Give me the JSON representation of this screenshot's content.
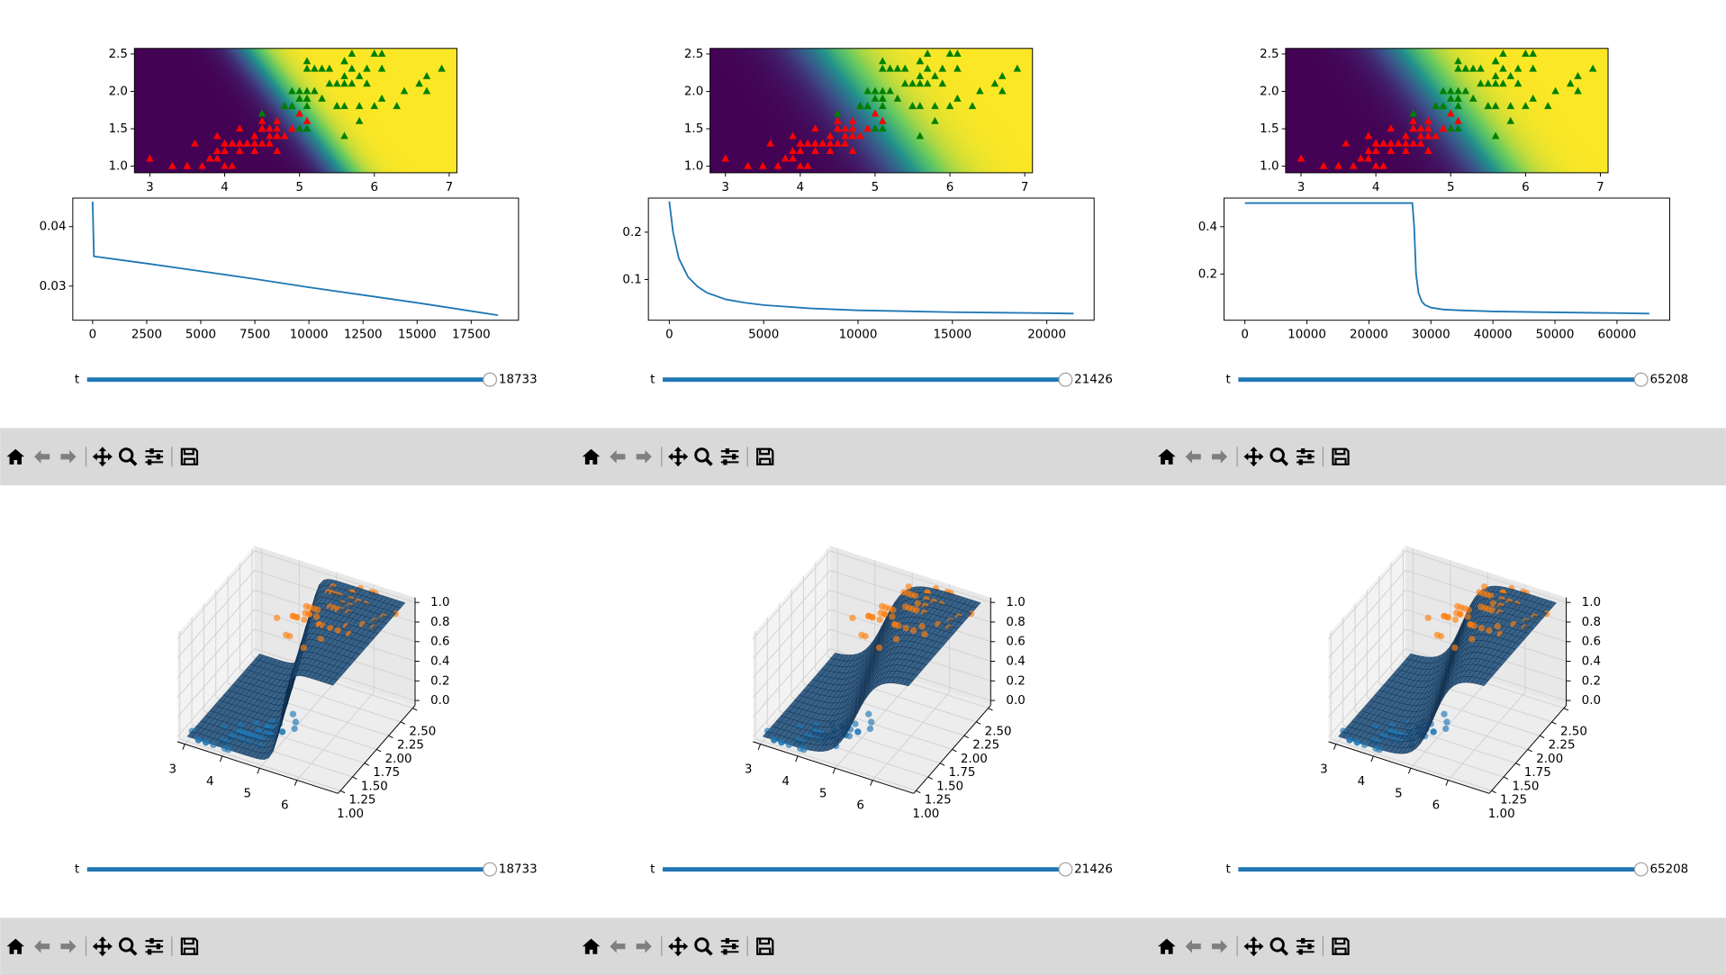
{
  "points": [
    {
      "color": "red",
      "z": 0,
      "x": [
        4.7,
        4.5,
        4.9,
        4.0,
        4.6,
        4.5,
        4.7,
        3.3,
        4.6,
        3.9,
        3.5,
        4.2,
        4.0,
        4.7,
        3.6,
        4.4,
        4.5,
        4.1,
        4.5,
        3.9,
        4.8,
        4.0,
        4.9,
        4.7,
        4.3,
        4.4,
        4.8,
        5.0,
        4.5,
        3.5,
        3.8,
        3.7,
        3.9,
        5.1,
        4.5,
        4.5,
        4.7,
        4.4,
        4.1,
        4.0,
        4.4,
        4.6,
        4.0,
        3.3,
        4.2,
        4.2,
        4.2,
        4.3,
        3.0,
        4.1
      ],
      "y": [
        1.4,
        1.5,
        1.5,
        1.3,
        1.5,
        1.3,
        1.6,
        1.0,
        1.3,
        1.4,
        1.0,
        1.5,
        1.0,
        1.4,
        1.3,
        1.4,
        1.5,
        1.0,
        1.5,
        1.1,
        1.8,
        1.3,
        1.5,
        1.2,
        1.3,
        1.4,
        1.4,
        1.7,
        1.5,
        1.0,
        1.1,
        1.0,
        1.2,
        1.6,
        1.5,
        1.6,
        1.5,
        1.3,
        1.3,
        1.3,
        1.2,
        1.4,
        1.2,
        1.0,
        1.3,
        1.2,
        1.3,
        1.3,
        1.1,
        1.3
      ]
    },
    {
      "color": "green",
      "z": 1,
      "x": [
        6.0,
        5.1,
        5.9,
        5.6,
        5.8,
        6.6,
        4.5,
        6.3,
        5.8,
        6.1,
        5.1,
        5.3,
        5.5,
        5.0,
        5.1,
        5.3,
        5.5,
        6.7,
        6.9,
        5.0,
        5.7,
        4.9,
        6.7,
        4.9,
        5.7,
        6.0,
        4.8,
        4.9,
        5.6,
        5.8,
        6.1,
        6.4,
        5.6,
        5.1,
        5.6,
        6.1,
        5.6,
        5.5,
        4.8,
        5.4,
        5.6,
        5.1,
        5.1,
        5.9,
        5.7,
        5.2,
        5.0,
        5.2,
        5.4,
        5.1
      ],
      "y": [
        2.5,
        1.9,
        2.1,
        1.8,
        2.2,
        2.1,
        1.7,
        1.8,
        1.8,
        2.5,
        2.0,
        1.9,
        2.1,
        2.0,
        2.4,
        2.3,
        1.8,
        2.2,
        2.3,
        1.5,
        2.3,
        2.0,
        2.0,
        1.8,
        2.1,
        1.8,
        1.8,
        1.8,
        2.1,
        1.6,
        1.9,
        2.0,
        2.2,
        1.5,
        1.4,
        2.3,
        2.4,
        1.8,
        1.8,
        2.1,
        2.4,
        2.3,
        1.9,
        2.3,
        2.5,
        2.3,
        1.9,
        2.0,
        2.3,
        1.8
      ]
    }
  ],
  "windows": [
    {
      "scatter": {
        "type": "scatter",
        "xlim": [
          2.794,
          7.103
        ],
        "ylim": [
          0.912,
          2.574
        ],
        "xticks": [
          3,
          4,
          5,
          6,
          7
        ],
        "yticks": [
          {
            "value": 1,
            "label": "1.0"
          },
          {
            "value": 1.5,
            "label": "1.5"
          },
          {
            "value": 2,
            "label": "2.0"
          },
          {
            "value": 2.5,
            "label": "2.5"
          }
        ]
      },
      "loss": {
        "type": "line",
        "color": "#1f77b4",
        "xlim": [
          -916,
          19688
        ],
        "ylim": [
          0.02426,
          0.0448
        ],
        "xticks": [
          0,
          2500,
          5000,
          7500,
          10000,
          12500,
          15000,
          17500
        ],
        "yticks": [
          0.03,
          0.04
        ],
        "x": [
          0,
          60,
          2500,
          5000,
          7500,
          10000,
          12500,
          15000,
          17500,
          18733
        ],
        "values": [
          0.0442,
          0.035,
          0.0338,
          0.0325,
          0.0312,
          0.0298,
          0.0285,
          0.0272,
          0.0258,
          0.0251
        ]
      },
      "slider": {
        "label": "t",
        "value": 18733
      }
    },
    {
      "scatter": {
        "type": "scatter",
        "xlim": [
          2.794,
          7.103
        ],
        "ylim": [
          0.912,
          2.574
        ],
        "xticks": [
          3,
          4,
          5,
          6,
          7
        ],
        "yticks": [
          {
            "value": 1,
            "label": "1.0"
          },
          {
            "value": 1.5,
            "label": "1.5"
          },
          {
            "value": 2,
            "label": "2.0"
          },
          {
            "value": 2.5,
            "label": "2.5"
          }
        ]
      },
      "loss": {
        "type": "line",
        "color": "#1f77b4",
        "xlim": [
          -1108,
          22507
        ],
        "ylim": [
          0.014,
          0.272
        ],
        "xticks": [
          0,
          5000,
          10000,
          15000,
          20000
        ],
        "yticks": [
          0.1,
          0.2
        ],
        "x": [
          0,
          200,
          500,
          1000,
          1500,
          2000,
          3000,
          4000,
          5000,
          7500,
          10000,
          12500,
          15000,
          17500,
          20000,
          21426
        ],
        "values": [
          0.265,
          0.2,
          0.145,
          0.105,
          0.085,
          0.072,
          0.058,
          0.051,
          0.046,
          0.039,
          0.035,
          0.033,
          0.031,
          0.03,
          0.029,
          0.028
        ]
      },
      "slider": {
        "label": "t",
        "value": 21426
      }
    },
    {
      "scatter": {
        "type": "scatter",
        "xlim": [
          2.794,
          7.103
        ],
        "ylim": [
          0.912,
          2.574
        ],
        "xticks": [
          3,
          4,
          5,
          6,
          7
        ],
        "yticks": [
          {
            "value": 1,
            "label": "1.0"
          },
          {
            "value": 1.5,
            "label": "1.5"
          },
          {
            "value": 2,
            "label": "2.0"
          },
          {
            "value": 2.5,
            "label": "2.5"
          }
        ]
      },
      "loss": {
        "type": "line",
        "color": "#1f77b4",
        "xlim": [
          -3373,
          68503
        ],
        "ylim": [
          0.0047,
          0.521
        ],
        "xticks": [
          0,
          10000,
          20000,
          30000,
          40000,
          50000,
          60000
        ],
        "yticks": [
          0.2,
          0.4
        ],
        "x": [
          0,
          27000,
          27300,
          27600,
          28000,
          28500,
          29000,
          30000,
          32000,
          35000,
          40000,
          50000,
          60000,
          65208
        ],
        "values": [
          0.5,
          0.5,
          0.4,
          0.2,
          0.12,
          0.085,
          0.07,
          0.058,
          0.05,
          0.046,
          0.042,
          0.038,
          0.035,
          0.033
        ]
      },
      "slider": {
        "label": "t",
        "value": 65208
      }
    }
  ],
  "surfaces": [
    {
      "plot": {
        "type": "surface",
        "color": "#1f4e7a",
        "point_colors": [
          "#1f77b4",
          "#ff7f0e"
        ],
        "xlim": [
          2.8,
          7.1
        ],
        "ylim": [
          0.95,
          2.55
        ],
        "zlim": [
          -0.05,
          1.05
        ],
        "xticks": [
          3,
          4,
          5,
          6
        ],
        "yticks": [
          {
            "value": 1,
            "label": "1.00"
          },
          {
            "value": 1.25,
            "label": "1.25"
          },
          {
            "value": 1.5,
            "label": "1.50"
          },
          {
            "value": 1.75,
            "label": "1.75"
          },
          {
            "value": 2,
            "label": "2.00"
          },
          {
            "value": 2.25,
            "label": "2.25"
          },
          {
            "value": 2.5,
            "label": "2.50"
          }
        ],
        "zticks": [
          {
            "value": 0,
            "label": "0.0"
          },
          {
            "value": 0.2,
            "label": "0.2"
          },
          {
            "value": 0.4,
            "label": "0.4"
          },
          {
            "value": 0.6,
            "label": "0.6"
          },
          {
            "value": 0.8,
            "label": "0.8"
          },
          {
            "value": 1,
            "label": "1.0"
          }
        ]
      },
      "slider": {
        "label": "t",
        "value": 18733
      }
    },
    {
      "plot": {
        "type": "surface",
        "color": "#1f4e7a",
        "point_colors": [
          "#1f77b4",
          "#ff7f0e"
        ],
        "xlim": [
          2.8,
          7.1
        ],
        "ylim": [
          0.95,
          2.55
        ],
        "zlim": [
          -0.05,
          1.05
        ],
        "xticks": [
          3,
          4,
          5,
          6
        ],
        "yticks": [
          {
            "value": 1,
            "label": "1.00"
          },
          {
            "value": 1.25,
            "label": "1.25"
          },
          {
            "value": 1.5,
            "label": "1.50"
          },
          {
            "value": 1.75,
            "label": "1.75"
          },
          {
            "value": 2,
            "label": "2.00"
          },
          {
            "value": 2.25,
            "label": "2.25"
          },
          {
            "value": 2.5,
            "label": "2.50"
          }
        ],
        "zticks": [
          {
            "value": 0,
            "label": "0.0"
          },
          {
            "value": 0.2,
            "label": "0.2"
          },
          {
            "value": 0.4,
            "label": "0.4"
          },
          {
            "value": 0.6,
            "label": "0.6"
          },
          {
            "value": 0.8,
            "label": "0.8"
          },
          {
            "value": 1,
            "label": "1.0"
          }
        ]
      },
      "slider": {
        "label": "t",
        "value": 21426
      }
    },
    {
      "plot": {
        "type": "surface",
        "color": "#1f4e7a",
        "point_colors": [
          "#1f77b4",
          "#ff7f0e"
        ],
        "xlim": [
          2.8,
          7.1
        ],
        "ylim": [
          0.95,
          2.55
        ],
        "zlim": [
          -0.05,
          1.05
        ],
        "xticks": [
          3,
          4,
          5,
          6
        ],
        "yticks": [
          {
            "value": 1,
            "label": "1.00"
          },
          {
            "value": 1.25,
            "label": "1.25"
          },
          {
            "value": 1.5,
            "label": "1.50"
          },
          {
            "value": 1.75,
            "label": "1.75"
          },
          {
            "value": 2,
            "label": "2.00"
          },
          {
            "value": 2.25,
            "label": "2.25"
          },
          {
            "value": 2.5,
            "label": "2.50"
          }
        ],
        "zticks": [
          {
            "value": 0,
            "label": "0.0"
          },
          {
            "value": 0.2,
            "label": "0.2"
          },
          {
            "value": 0.4,
            "label": "0.4"
          },
          {
            "value": 0.6,
            "label": "0.6"
          },
          {
            "value": 0.8,
            "label": "0.8"
          },
          {
            "value": 1,
            "label": "1.0"
          }
        ]
      },
      "slider": {
        "label": "t",
        "value": 65208
      }
    }
  ]
}
